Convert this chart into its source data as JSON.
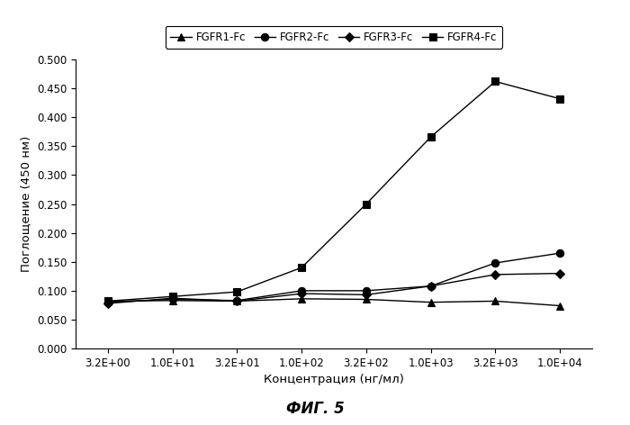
{
  "x_values": [
    3.2,
    10.0,
    32.0,
    100.0,
    320.0,
    1000.0,
    3200.0,
    10000.0
  ],
  "x_labels": [
    "3.2E+00",
    "1.0E+01",
    "3.2E+01",
    "1.0E+02",
    "3.2E+02",
    "1.0E+03",
    "3.2E+03",
    "1.0E+04"
  ],
  "series": {
    "FGFR1-Fc": {
      "y": [
        0.082,
        0.083,
        0.082,
        0.086,
        0.085,
        0.08,
        0.082,
        0.074
      ],
      "color": "#000000",
      "marker": "^",
      "linestyle": "-"
    },
    "FGFR2-Fc": {
      "y": [
        0.08,
        0.085,
        0.083,
        0.1,
        0.1,
        0.108,
        0.148,
        0.165
      ],
      "color": "#000000",
      "marker": "o",
      "linestyle": "-"
    },
    "FGFR3-Fc": {
      "y": [
        0.078,
        0.087,
        0.082,
        0.095,
        0.093,
        0.108,
        0.128,
        0.13
      ],
      "color": "#000000",
      "marker": "D",
      "linestyle": "-"
    },
    "FGFR4-Fc": {
      "y": [
        0.082,
        0.09,
        0.098,
        0.14,
        0.25,
        0.366,
        0.462,
        0.432
      ],
      "color": "#000000",
      "marker": "s",
      "linestyle": "-"
    }
  },
  "ylabel": "Поглощение (450 нм)",
  "xlabel": "Концентрация (нг/мл)",
  "caption": "ФИГ. 5",
  "ylim": [
    0.0,
    0.5
  ],
  "yticks": [
    0.0,
    0.05,
    0.1,
    0.15,
    0.2,
    0.25,
    0.3,
    0.35,
    0.4,
    0.45,
    0.5
  ],
  "background_color": "#ffffff",
  "legend_order": [
    "FGFR1-Fc",
    "FGFR2-Fc",
    "FGFR3-Fc",
    "FGFR4-Fc"
  ]
}
